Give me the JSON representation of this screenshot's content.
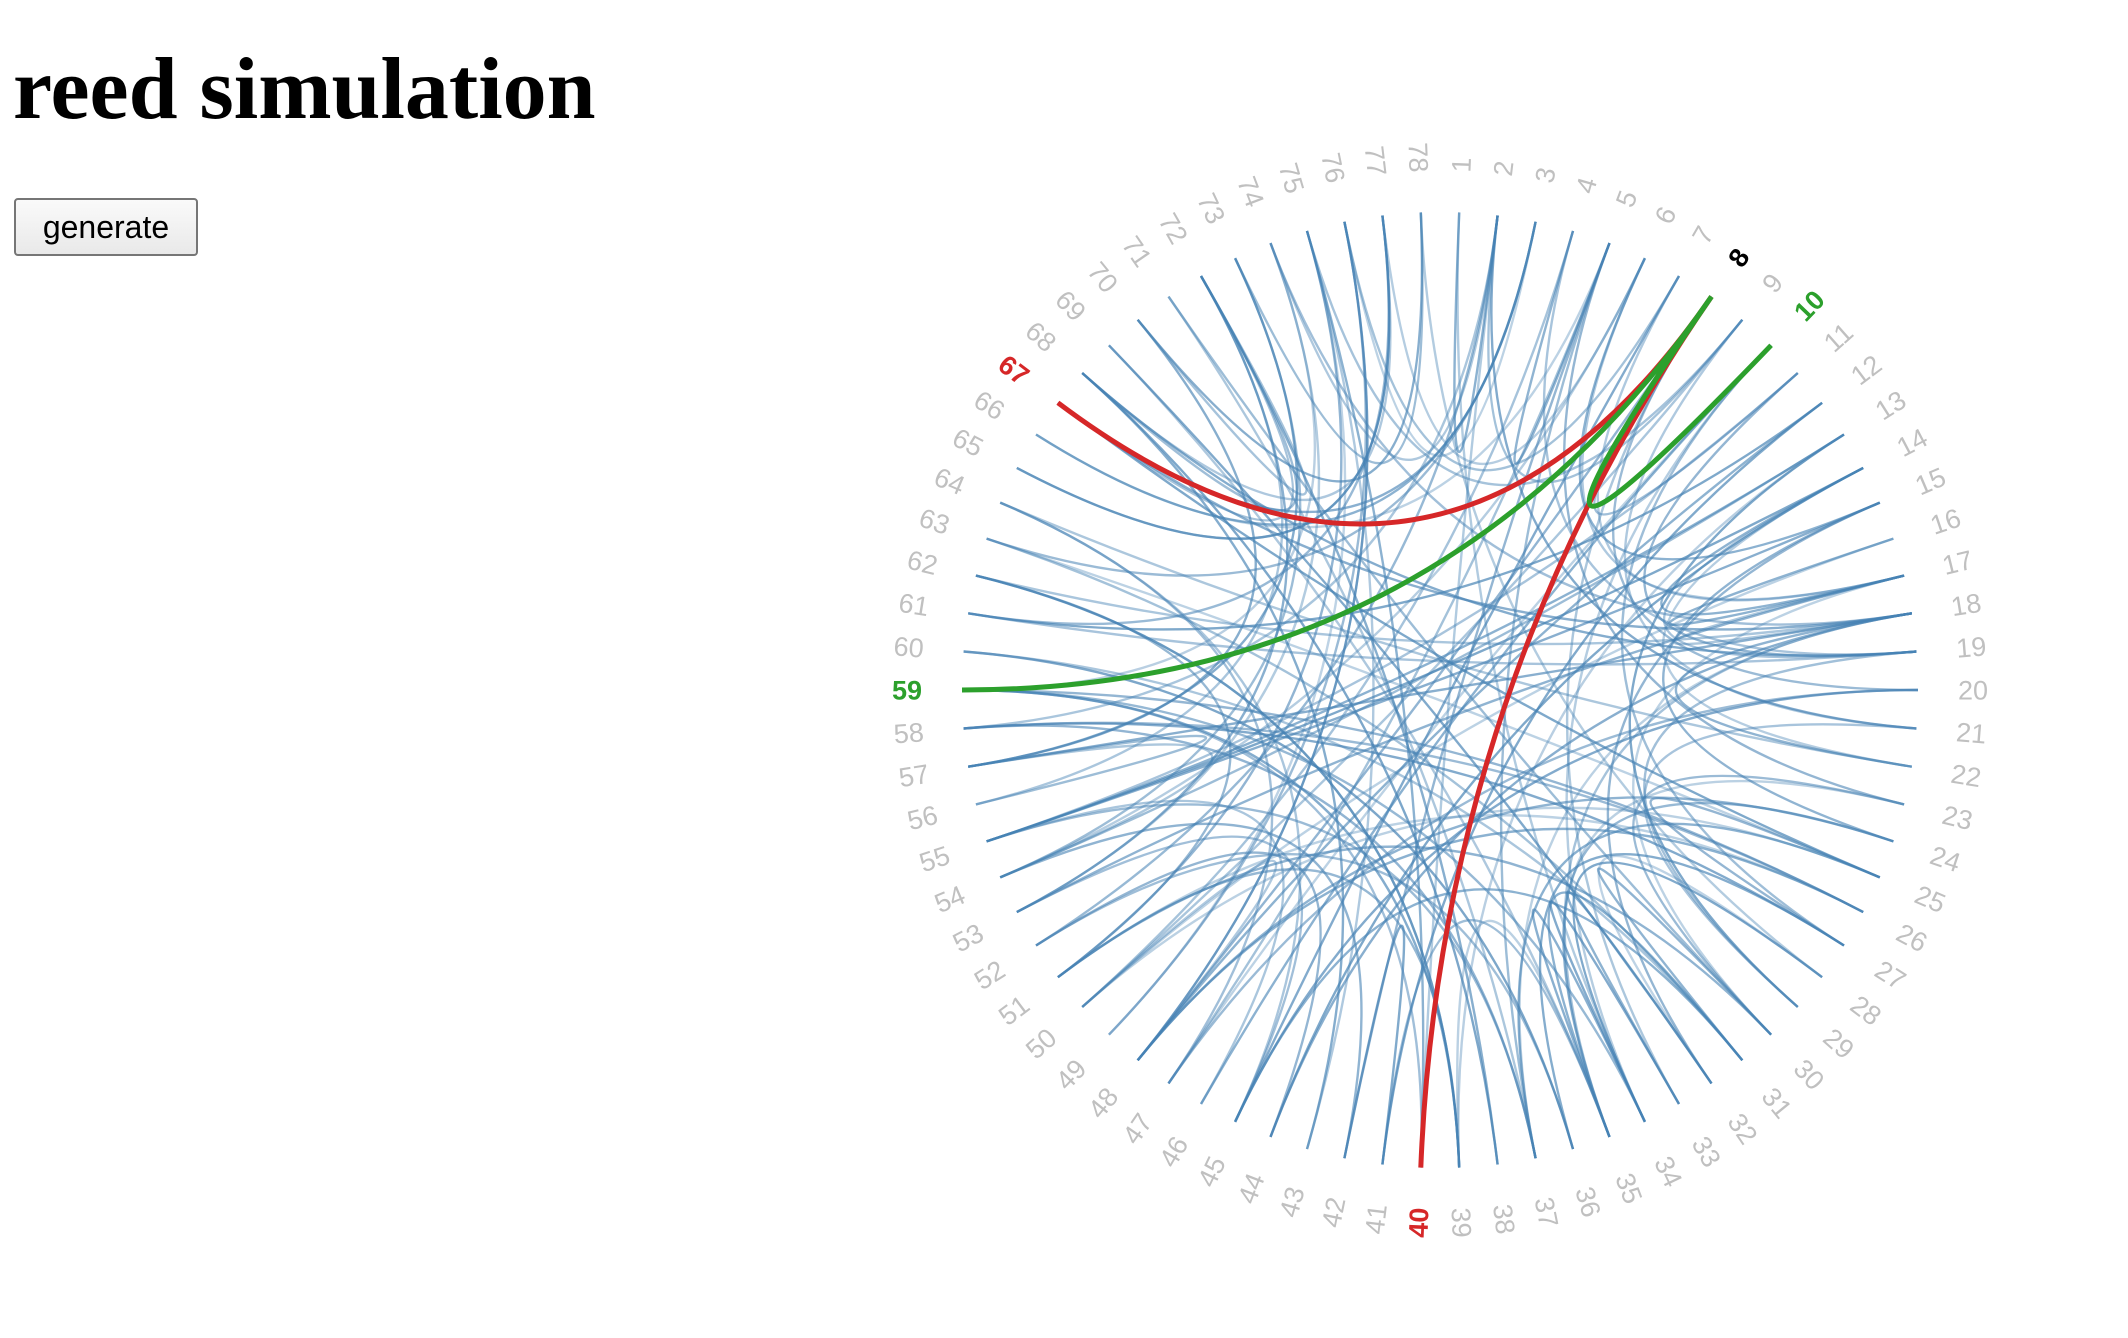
{
  "page": {
    "title": "reed simulation",
    "generate_label": "generate"
  },
  "diagram": {
    "node_count": 78,
    "colors": {
      "edge": "#4682b4",
      "label": "#c0c0c0",
      "highlight_red": "#d62728",
      "highlight_green": "#2ca02c",
      "highlight_black": "#000000"
    },
    "highlighted_nodes": [
      {
        "id": 8,
        "color": "#000000"
      },
      {
        "id": 10,
        "color": "#2ca02c"
      },
      {
        "id": 59,
        "color": "#2ca02c"
      },
      {
        "id": 67,
        "color": "#d62728"
      },
      {
        "id": 40,
        "color": "#d62728"
      }
    ],
    "highlighted_paths": [
      {
        "color": "#d62728",
        "via": 8,
        "ends": [
          67,
          40
        ]
      },
      {
        "color": "#2ca02c",
        "via": 8,
        "ends": [
          10,
          59
        ]
      }
    ]
  }
}
